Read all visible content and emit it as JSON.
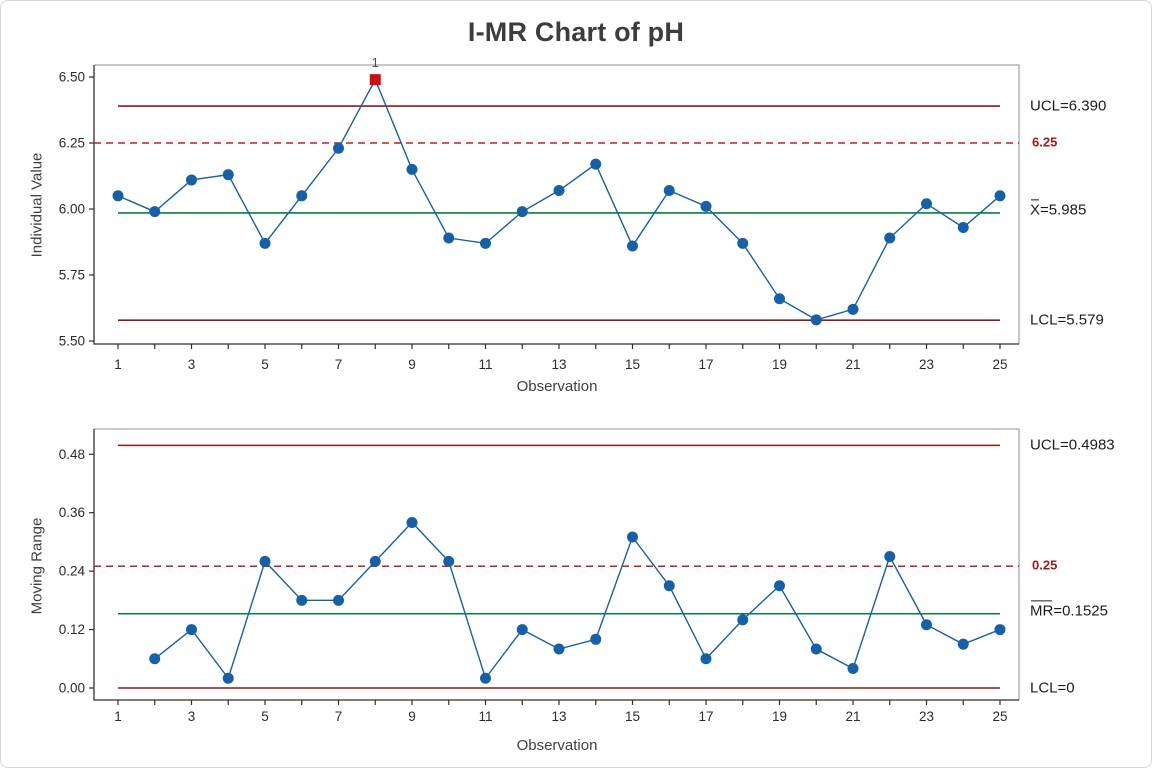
{
  "title": "I-MR Chart of pH",
  "colors": {
    "series_blue": "#1560A8",
    "center_green": "#00813C",
    "limit_red": "#8B1A1A",
    "reference_red": "#C41F1F",
    "marker_red": "#CE0E0E",
    "plot_border": "#A8A8A8",
    "axis_line": "#2F2F2F",
    "tick_text": "#2B2B2B",
    "label_text": "#3F3F3F",
    "title_text": "#3D3D3D",
    "red_label_text": "#9E1A1A",
    "flag_text": "#4D4D4D",
    "card_border": "#D8D8D8"
  },
  "chart_data": [
    {
      "type": "line",
      "id": "individuals",
      "title": "I-MR Chart of pH",
      "ylabel": "Individual Value",
      "xlabel": "Observation",
      "x": [
        1,
        2,
        3,
        4,
        5,
        6,
        7,
        8,
        9,
        10,
        11,
        12,
        13,
        14,
        15,
        16,
        17,
        18,
        19,
        20,
        21,
        22,
        23,
        24,
        25
      ],
      "values": [
        6.05,
        5.99,
        6.11,
        6.13,
        5.87,
        6.05,
        6.23,
        6.49,
        6.15,
        5.89,
        5.87,
        5.99,
        6.07,
        6.17,
        5.86,
        6.07,
        6.01,
        5.87,
        5.66,
        5.58,
        5.62,
        5.89,
        6.02,
        5.93,
        6.05
      ],
      "ylim": [
        5.5,
        6.5
      ],
      "yticks": [
        6.5,
        6.25,
        6.0,
        5.75,
        5.5
      ],
      "xlim": [
        1,
        25
      ],
      "xticks_labeled": [
        1,
        3,
        5,
        7,
        9,
        11,
        13,
        15,
        17,
        19,
        21,
        23,
        25
      ],
      "center_line": 5.985,
      "ucl": 6.39,
      "lcl": 5.579,
      "reference_line": 6.25,
      "flagged": [
        8
      ],
      "flag_label": "1",
      "grid": false,
      "legend": "none",
      "right_labels": [
        {
          "name": "ucl-label",
          "text": "UCL=6.390",
          "value": 6.39
        },
        {
          "name": "reference-label",
          "text": "6.25",
          "value": 6.25,
          "red": true
        },
        {
          "name": "center-label",
          "text": "X=5.985",
          "value": 5.985,
          "overbar": 1
        },
        {
          "name": "lcl-label",
          "text": "LCL=5.579",
          "value": 5.579
        }
      ]
    },
    {
      "type": "line",
      "id": "moving-range",
      "ylabel": "Moving Range",
      "xlabel": "Observation",
      "x": [
        2,
        3,
        4,
        5,
        6,
        7,
        8,
        9,
        10,
        11,
        12,
        13,
        14,
        15,
        16,
        17,
        18,
        19,
        20,
        21,
        22,
        23,
        24,
        25
      ],
      "values": [
        0.06,
        0.12,
        0.02,
        0.26,
        0.18,
        0.18,
        0.26,
        0.34,
        0.26,
        0.02,
        0.12,
        0.08,
        0.1,
        0.31,
        0.21,
        0.06,
        0.14,
        0.21,
        0.08,
        0.04,
        0.27,
        0.13,
        0.09,
        0.12
      ],
      "ylim": [
        0.0,
        0.48
      ],
      "yticks": [
        0.48,
        0.36,
        0.24,
        0.12,
        0.0
      ],
      "xlim": [
        1,
        25
      ],
      "xticks_labeled": [
        1,
        3,
        5,
        7,
        9,
        11,
        13,
        15,
        17,
        19,
        21,
        23,
        25
      ],
      "center_line": 0.1525,
      "ucl": 0.4983,
      "lcl": 0,
      "reference_line": 0.25,
      "flagged": [],
      "flag_label": "",
      "grid": false,
      "legend": "none",
      "right_labels": [
        {
          "name": "ucl-label",
          "text": "UCL=0.4983",
          "value": 0.4983
        },
        {
          "name": "reference-label",
          "text": "0.25",
          "value": 0.25,
          "red": true
        },
        {
          "name": "center-label",
          "text": "MR=0.1525",
          "value": 0.1525,
          "overbar": 2
        },
        {
          "name": "lcl-label",
          "text": "LCL=0",
          "value": 0
        }
      ]
    }
  ]
}
